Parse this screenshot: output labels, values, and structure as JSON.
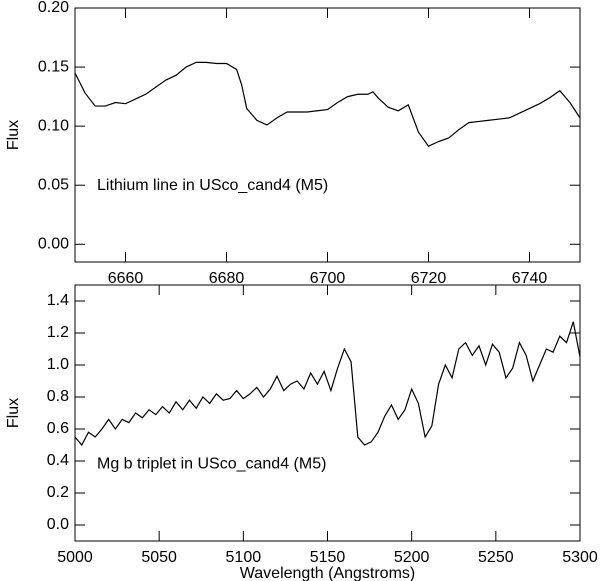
{
  "chart_data": [
    {
      "type": "line",
      "annotation": "Lithium line in USco_cand4 (M5)",
      "ylabel": "Flux",
      "x": [
        6650,
        6652,
        6654,
        6656,
        6658,
        6660,
        6662,
        6664,
        6666,
        6668,
        6670,
        6672,
        6674,
        6676,
        6678,
        6680,
        6682,
        6683,
        6684,
        6686,
        6688,
        6690,
        6692,
        6694,
        6696,
        6698,
        6700,
        6702,
        6704,
        6706,
        6708,
        6709,
        6710,
        6712,
        6714,
        6716,
        6718,
        6720,
        6722,
        6724,
        6726,
        6728,
        6730,
        6732,
        6734,
        6736,
        6738,
        6740,
        6742,
        6744,
        6746,
        6748,
        6750
      ],
      "series": [
        {
          "name": "Lithium line",
          "color": "#000000",
          "values": [
            0.145,
            0.128,
            0.117,
            0.117,
            0.12,
            0.119,
            0.123,
            0.127,
            0.133,
            0.139,
            0.143,
            0.15,
            0.154,
            0.154,
            0.153,
            0.153,
            0.148,
            0.135,
            0.115,
            0.105,
            0.101,
            0.107,
            0.112,
            0.112,
            0.112,
            0.113,
            0.114,
            0.12,
            0.125,
            0.127,
            0.127,
            0.129,
            0.124,
            0.116,
            0.113,
            0.118,
            0.095,
            0.083,
            0.087,
            0.09,
            0.097,
            0.103,
            0.104,
            0.105,
            0.106,
            0.107,
            0.111,
            0.115,
            0.119,
            0.124,
            0.13,
            0.12,
            0.107
          ]
        }
      ],
      "xlim": [
        6650,
        6750
      ],
      "xticks": [
        6660,
        6680,
        6700,
        6720,
        6740
      ],
      "ylim": [
        -0.015,
        0.2
      ],
      "yticks": [
        {
          "value": 0,
          "label": "0.00"
        },
        {
          "value": 0.05,
          "label": "0.05"
        },
        {
          "value": 0.1,
          "label": "0.10"
        },
        {
          "value": 0.15,
          "label": "0.15"
        },
        {
          "value": 0.2,
          "label": "0.20"
        }
      ]
    },
    {
      "type": "line",
      "annotation": "Mg b triplet in USco_cand4 (M5)",
      "ylabel": "Flux",
      "xlabel": "Wavelength (Angstroms)",
      "x": [
        5000,
        5004,
        5008,
        5012,
        5016,
        5020,
        5024,
        5028,
        5032,
        5036,
        5040,
        5044,
        5048,
        5052,
        5056,
        5060,
        5064,
        5068,
        5072,
        5076,
        5080,
        5084,
        5088,
        5092,
        5096,
        5100,
        5104,
        5108,
        5112,
        5116,
        5120,
        5124,
        5128,
        5132,
        5136,
        5140,
        5144,
        5148,
        5152,
        5156,
        5160,
        5164,
        5168,
        5172,
        5176,
        5180,
        5184,
        5188,
        5192,
        5196,
        5200,
        5204,
        5208,
        5212,
        5216,
        5220,
        5224,
        5228,
        5232,
        5236,
        5240,
        5244,
        5248,
        5252,
        5256,
        5260,
        5264,
        5268,
        5272,
        5276,
        5280,
        5284,
        5288,
        5292,
        5296,
        5300
      ],
      "series": [
        {
          "name": "Mg b triplet",
          "color": "#000000",
          "values": [
            0.55,
            0.5,
            0.58,
            0.55,
            0.6,
            0.66,
            0.6,
            0.66,
            0.64,
            0.7,
            0.67,
            0.72,
            0.69,
            0.74,
            0.7,
            0.77,
            0.72,
            0.78,
            0.73,
            0.8,
            0.76,
            0.82,
            0.78,
            0.79,
            0.84,
            0.79,
            0.82,
            0.86,
            0.8,
            0.85,
            0.93,
            0.84,
            0.88,
            0.9,
            0.85,
            0.95,
            0.88,
            0.96,
            0.84,
            0.98,
            1.1,
            1.02,
            0.55,
            0.5,
            0.52,
            0.58,
            0.68,
            0.75,
            0.66,
            0.72,
            0.85,
            0.76,
            0.55,
            0.62,
            0.88,
            1.0,
            0.92,
            1.1,
            1.14,
            1.06,
            1.12,
            1.0,
            1.13,
            1.08,
            0.92,
            0.98,
            1.14,
            1.06,
            0.9,
            1.0,
            1.1,
            1.08,
            1.18,
            1.14,
            1.27,
            1.05
          ]
        }
      ],
      "xlim": [
        5000,
        5300
      ],
      "xticks": [
        5000,
        5050,
        5100,
        5150,
        5200,
        5250,
        5300
      ],
      "ylim": [
        -0.1,
        1.5
      ],
      "yticks": [
        {
          "value": 0,
          "label": "0.0"
        },
        {
          "value": 0.2,
          "label": "0.2"
        },
        {
          "value": 0.4,
          "label": "0.4"
        },
        {
          "value": 0.6,
          "label": "0.6"
        },
        {
          "value": 0.8,
          "label": "0.8"
        },
        {
          "value": 1,
          "label": "1.0"
        },
        {
          "value": 1.2,
          "label": "1.2"
        },
        {
          "value": 1.4,
          "label": "1.4"
        }
      ]
    }
  ]
}
